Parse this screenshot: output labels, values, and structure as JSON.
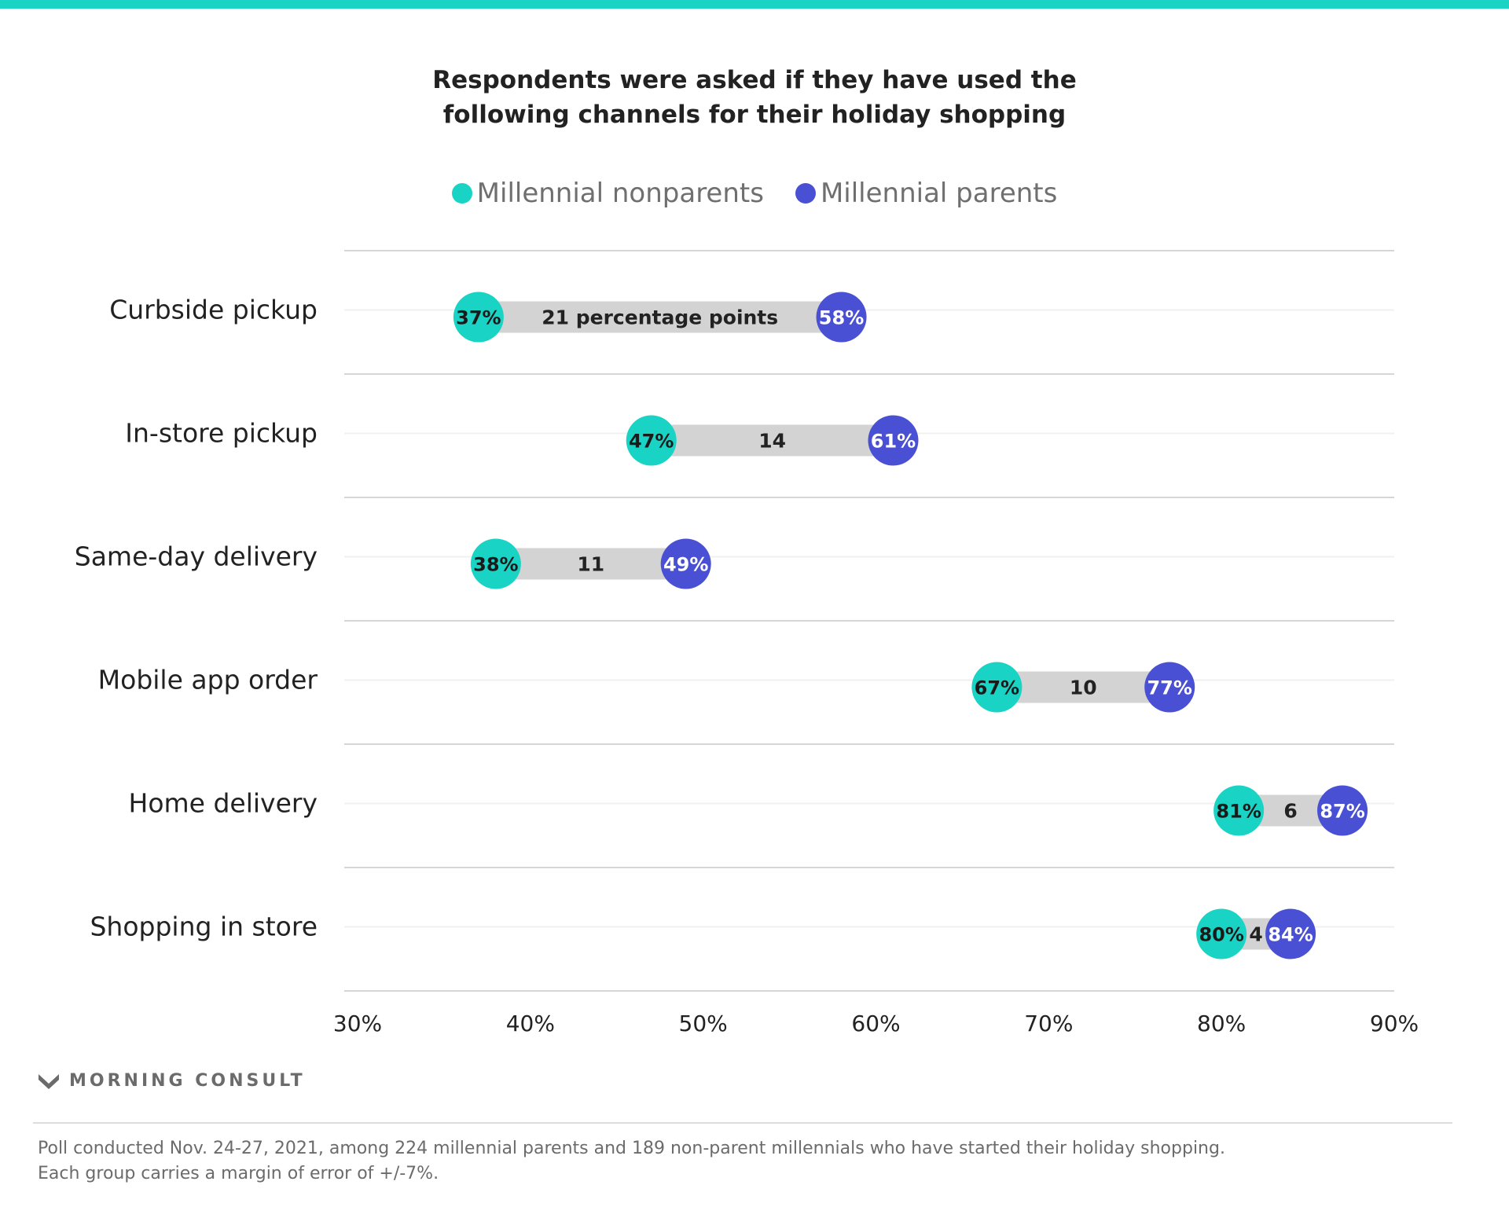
{
  "colors": {
    "top_bar": "#19d3c5",
    "nonparents": "#19d3c5",
    "parents": "#4a50d3",
    "connector": "#d3d3d3"
  },
  "footer": {
    "brand": "MORNING CONSULT",
    "brand_icon": "morning-consult-m-logo",
    "note_line1": "Poll conducted Nov. 24-27, 2021, among 224 millennial parents and 189 non-parent millennials who have started their holiday shopping.",
    "note_line2": "Each group carries a margin of error of +/-7%."
  },
  "chart_data": {
    "type": "dumbbell",
    "title_lines": [
      "Respondents were asked if they have used the",
      "following channels for their holiday shopping"
    ],
    "legend": [
      "Millennial nonparents",
      "Millennial parents"
    ],
    "legend_placement": "top-center",
    "categories": [
      "Curbside pickup",
      "In-store pickup",
      "Same-day delivery",
      "Mobile app order",
      "Home delivery",
      "Shopping in store"
    ],
    "series": [
      {
        "name": "Millennial nonparents",
        "values": [
          37,
          47,
          38,
          67,
          81,
          80
        ]
      },
      {
        "name": "Millennial parents",
        "values": [
          58,
          61,
          49,
          77,
          87,
          84
        ]
      }
    ],
    "point_labels": {
      "Millennial nonparents": [
        "37%",
        "47%",
        "38%",
        "67%",
        "81%",
        "80%"
      ],
      "Millennial parents": [
        "58%",
        "61%",
        "49%",
        "77%",
        "87%",
        "84%"
      ]
    },
    "gap_labels": [
      "21 percentage points",
      "14",
      "11",
      "10",
      "6",
      "4"
    ],
    "xlim": [
      30,
      90
    ],
    "xticks": [
      "30%",
      "40%",
      "50%",
      "60%",
      "70%",
      "80%",
      "90%"
    ],
    "grid": true
  }
}
